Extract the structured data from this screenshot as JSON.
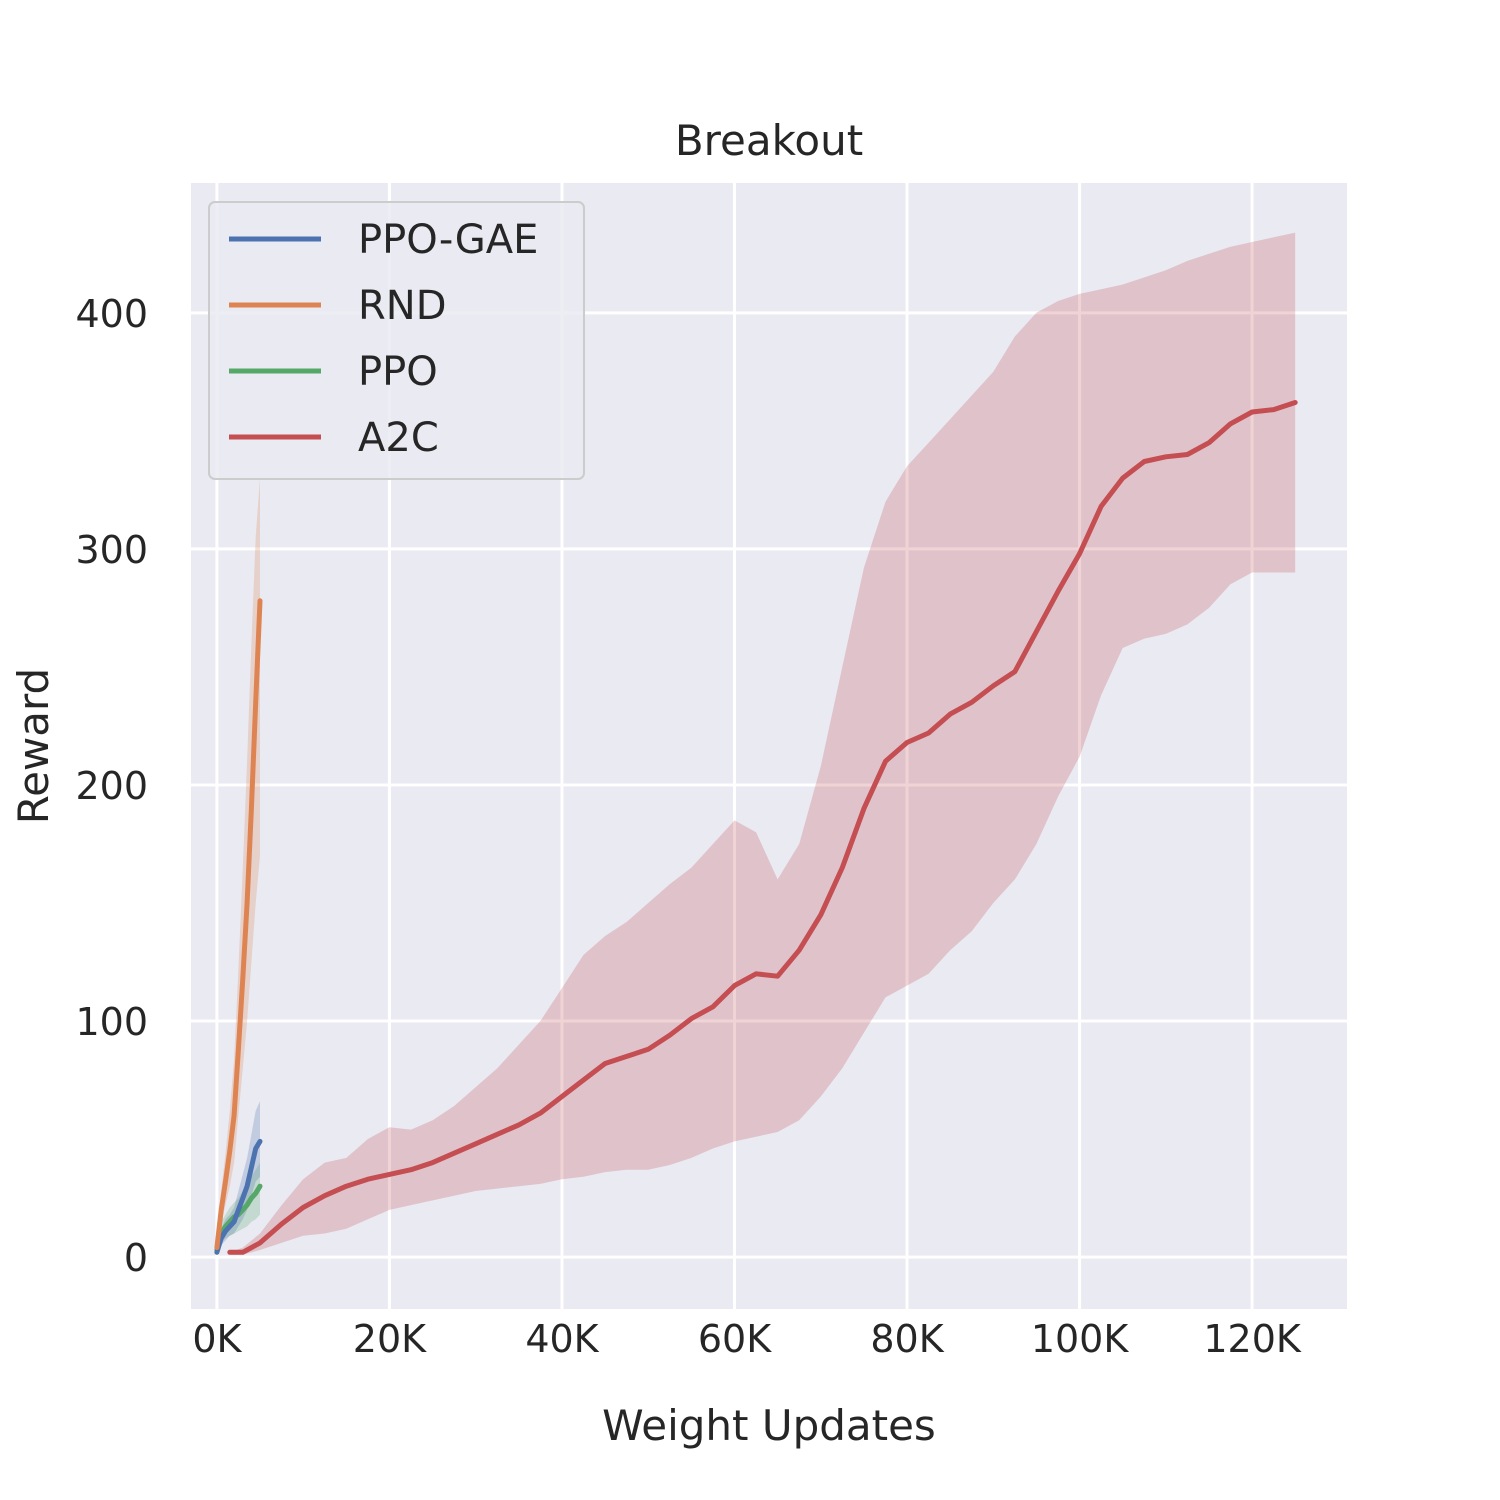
{
  "chart_data": {
    "type": "line",
    "title": "Breakout",
    "xlabel": "Weight Updates",
    "ylabel": "Reward",
    "xlim": [
      -3000,
      131000
    ],
    "ylim": [
      -22,
      455
    ],
    "xticks": [
      0,
      20000,
      40000,
      60000,
      80000,
      100000,
      120000
    ],
    "xtick_labels": [
      "0K",
      "20K",
      "40K",
      "60K",
      "80K",
      "100K",
      "120K"
    ],
    "yticks": [
      0,
      100,
      200,
      300,
      400
    ],
    "ytick_labels": [
      "0",
      "100",
      "200",
      "300",
      "400"
    ],
    "grid": true,
    "legend_position": "upper-left",
    "series": [
      {
        "name": "PPO-GAE",
        "color": "#4c72b0",
        "x": [
          0,
          500,
          1000,
          1500,
          2000,
          2500,
          3000,
          3500,
          4000,
          4500,
          5000
        ],
        "y": [
          2,
          8,
          11,
          13,
          15,
          20,
          25,
          30,
          38,
          46,
          49
        ],
        "lower": [
          1,
          5,
          7,
          9,
          10,
          13,
          16,
          20,
          26,
          32,
          34
        ],
        "upper": [
          4,
          12,
          16,
          18,
          21,
          28,
          35,
          42,
          52,
          62,
          66
        ]
      },
      {
        "name": "RND",
        "color": "#dd8452",
        "x": [
          0,
          500,
          1000,
          1500,
          2000,
          2500,
          3000,
          3500,
          4000,
          4500,
          5000
        ],
        "y": [
          4,
          20,
          32,
          45,
          60,
          88,
          118,
          150,
          190,
          235,
          278
        ],
        "lower": [
          2,
          14,
          22,
          30,
          40,
          60,
          80,
          100,
          125,
          150,
          170
        ],
        "upper": [
          6,
          28,
          44,
          62,
          84,
          122,
          165,
          210,
          260,
          305,
          330
        ]
      },
      {
        "name": "PPO",
        "color": "#55a868",
        "x": [
          0,
          500,
          1000,
          1500,
          2000,
          2500,
          3000,
          3500,
          4000,
          4500,
          5000
        ],
        "y": [
          3,
          10,
          13,
          15,
          17,
          18,
          20,
          22,
          25,
          27,
          30
        ],
        "lower": [
          1,
          6,
          8,
          9,
          10,
          11,
          12,
          13,
          15,
          16,
          18
        ],
        "upper": [
          5,
          15,
          18,
          21,
          23,
          25,
          28,
          31,
          34,
          37,
          40
        ]
      },
      {
        "name": "A2C",
        "color": "#c44e52",
        "x": [
          1500,
          3000,
          5000,
          7500,
          10000,
          12500,
          15000,
          17500,
          20000,
          22500,
          25000,
          27500,
          30000,
          32500,
          35000,
          37500,
          40000,
          42500,
          45000,
          47500,
          50000,
          52500,
          55000,
          57500,
          60000,
          62500,
          65000,
          67500,
          70000,
          72500,
          75000,
          77500,
          80000,
          82500,
          85000,
          87500,
          90000,
          92500,
          95000,
          97500,
          100000,
          102500,
          105000,
          107500,
          110000,
          112500,
          115000,
          117500,
          120000,
          122500,
          125000
        ],
        "y": [
          2,
          2,
          6,
          14,
          21,
          26,
          30,
          33,
          35,
          37,
          40,
          44,
          48,
          52,
          56,
          61,
          68,
          75,
          82,
          85,
          88,
          94,
          101,
          106,
          115,
          120,
          119,
          130,
          145,
          165,
          190,
          210,
          218,
          222,
          230,
          235,
          242,
          248,
          265,
          282,
          298,
          318,
          330,
          337,
          339,
          340,
          345,
          353,
          358,
          359,
          362
        ],
        "lower": [
          1,
          1,
          3,
          6,
          9,
          10,
          12,
          16,
          20,
          22,
          24,
          26,
          28,
          29,
          30,
          31,
          33,
          34,
          36,
          37,
          37,
          39,
          42,
          46,
          49,
          51,
          53,
          58,
          68,
          80,
          95,
          110,
          115,
          120,
          130,
          138,
          150,
          160,
          175,
          195,
          212,
          238,
          258,
          262,
          264,
          268,
          275,
          285,
          290,
          290,
          290
        ],
        "upper": [
          2,
          4,
          10,
          22,
          33,
          40,
          42,
          50,
          55,
          54,
          58,
          64,
          72,
          80,
          90,
          100,
          114,
          128,
          136,
          142,
          150,
          158,
          165,
          175,
          185,
          180,
          160,
          175,
          208,
          250,
          292,
          320,
          335,
          345,
          355,
          365,
          375,
          390,
          400,
          405,
          408,
          410,
          412,
          415,
          418,
          422,
          425,
          428,
          430,
          432,
          434
        ]
      }
    ]
  }
}
